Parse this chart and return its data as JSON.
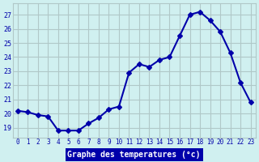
{
  "hours": [
    0,
    1,
    2,
    3,
    4,
    5,
    6,
    7,
    8,
    9,
    10,
    11,
    12,
    13,
    14,
    15,
    16,
    17,
    18,
    19,
    20,
    21,
    22,
    23
  ],
  "temperatures": [
    20.2,
    20.1,
    19.9,
    19.8,
    18.8,
    18.8,
    18.8,
    19.3,
    19.7,
    20.3,
    20.5,
    22.9,
    23.5,
    23.3,
    23.8,
    24.0,
    25.5,
    27.0,
    27.2,
    26.6,
    25.8,
    24.3,
    22.2,
    20.8
  ],
  "line_color": "#0000aa",
  "marker": "D",
  "marker_size": 3,
  "xlabel": "Graphe des temperatures (°c)",
  "ylabel_ticks": [
    19,
    20,
    21,
    22,
    23,
    24,
    25,
    26,
    27
  ],
  "ylim": [
    18.3,
    27.8
  ],
  "xlim": [
    -0.5,
    23.5
  ],
  "bg_color": "#d0f0f0",
  "grid_color": "#b0c8c8",
  "xlabel_bg": "#0000aa",
  "tick_label_color": "#0000aa",
  "line_width": 1.5
}
